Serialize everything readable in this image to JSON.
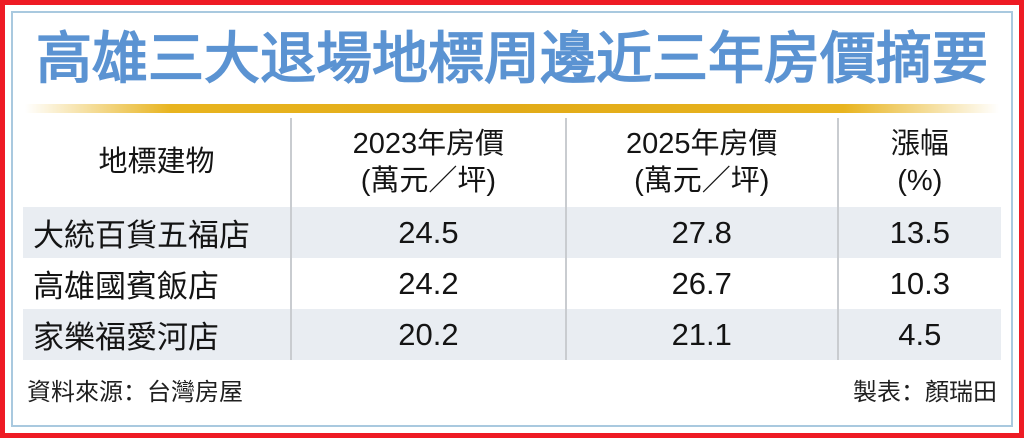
{
  "title": "高雄三大退場地標周邊近三年房價摘要",
  "colors": {
    "outer_border_red": "#ee1b24",
    "inner_border_blue": "#a9c9df",
    "title_blue": "#5b93d2",
    "rule_gold": "#e8b41f",
    "row_alt_bg": "#e9edf2",
    "separator_gray": "#c9ccd0"
  },
  "table": {
    "columns": [
      {
        "label": "地標建物",
        "sub": ""
      },
      {
        "label": "2023年房價",
        "sub": "(萬元／坪)"
      },
      {
        "label": "2025年房價",
        "sub": "(萬元／坪)"
      },
      {
        "label": "漲幅",
        "sub": "(%)"
      }
    ],
    "rows": [
      {
        "name": "大統百貨五福店",
        "price_2023": "24.5",
        "price_2025": "27.8",
        "change_pct": "13.5"
      },
      {
        "name": "高雄國賓飯店",
        "price_2023": "24.2",
        "price_2025": "26.7",
        "change_pct": "10.3"
      },
      {
        "name": "家樂福愛河店",
        "price_2023": "20.2",
        "price_2025": "21.1",
        "change_pct": "4.5"
      }
    ]
  },
  "footer": {
    "source": "資料來源：台灣房屋",
    "credit": "製表：顏瑞田"
  },
  "chart_data": {
    "type": "table",
    "title": "高雄三大退場地標周邊近三年房價摘要",
    "columns": [
      "地標建物",
      "2023年房價(萬元／坪)",
      "2025年房價(萬元／坪)",
      "漲幅(%)"
    ],
    "rows": [
      [
        "大統百貨五福店",
        24.5,
        27.8,
        13.5
      ],
      [
        "高雄國賓飯店",
        24.2,
        26.7,
        10.3
      ],
      [
        "家樂福愛河店",
        20.2,
        21.1,
        4.5
      ]
    ],
    "source": "台灣房屋",
    "credit": "顏瑞田"
  }
}
